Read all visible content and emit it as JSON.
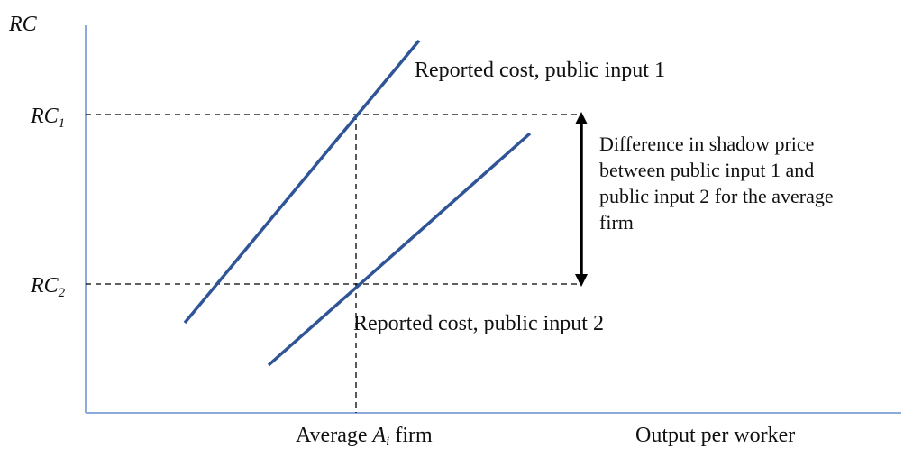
{
  "axes": {
    "y_label": "RC",
    "x_label": "Output per worker"
  },
  "levels": {
    "rc1": {
      "text": "RC",
      "sub": "1"
    },
    "rc2": {
      "text": "RC",
      "sub": "2"
    }
  },
  "average": {
    "prefix": "Average",
    "var": "A",
    "sub": "i",
    "suffix": "firm"
  },
  "lines": [
    {
      "label": "Reported cost, public input 1"
    },
    {
      "label": "Reported cost, public input 2"
    }
  ],
  "annotation": {
    "lines": [
      "Difference in shadow price",
      "between public input 1 and",
      "public input 2 for the average",
      "firm"
    ]
  }
}
